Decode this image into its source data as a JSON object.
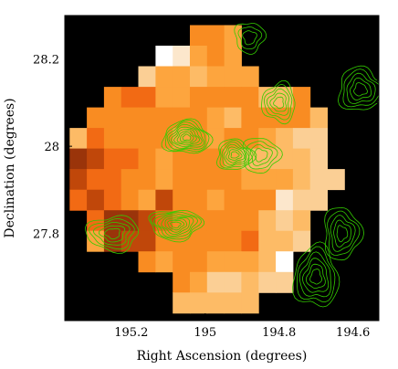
{
  "chart_data": {
    "type": "heatmap",
    "title": "",
    "xlabel": "Right Ascension (degrees)",
    "ylabel": "Declination (degrees)",
    "x_reversed": true,
    "xlim": [
      195.38,
      194.53
    ],
    "ylim": [
      27.6,
      28.3
    ],
    "xticks": [
      {
        "value": 195.2,
        "label": "195.2"
      },
      {
        "value": 195.0,
        "label": "195"
      },
      {
        "value": 194.8,
        "label": "194.8"
      },
      {
        "value": 194.6,
        "label": "194.6"
      }
    ],
    "yticks": [
      {
        "value": 28.2,
        "label": "28.2"
      },
      {
        "value": 28.0,
        "label": "28"
      },
      {
        "value": 27.8,
        "label": "27.8"
      }
    ],
    "background_color": "#000000",
    "contour_color": "#33cc00",
    "grid": false,
    "palette": {
      "0": "#fce7cc",
      "1": "#fbcf95",
      "2": "#fdbb66",
      "3": "#fda53e",
      "4": "#f98c22",
      "5": "#f26a14",
      "6": "#c0470a",
      "7": "#9a340a",
      "w": "#ffffff"
    },
    "pixel_grid": {
      "ra_start": 195.367,
      "dec_start": 28.278,
      "ra_step": 0.0465,
      "dec_step": 0.0472,
      "rows": [
        "..........................................",
        ".......443.......",
        ".....w0343.......",
        "....1332333......",
        "..455334444224...",
        ".44444443244442..",
        "254444343443211..",
        "765543444322221..",
        "6554434444333211.",
        "565436443444011..",
        ".5776544444212...",
        ".3766444445221...",
        "....43443332w....",
        "......4311211....",
        "......22222......"
      ]
    },
    "contours": [
      {
        "center": [
          195.05,
          28.02
        ],
        "levels": 9,
        "rx": 0.065,
        "ry": 0.038
      },
      {
        "center": [
          194.92,
          27.98
        ],
        "levels": 7,
        "rx": 0.05,
        "ry": 0.035
      },
      {
        "center": [
          194.85,
          27.98
        ],
        "levels": 4,
        "rx": 0.05,
        "ry": 0.04
      },
      {
        "center": [
          195.08,
          27.82
        ],
        "levels": 8,
        "rx": 0.07,
        "ry": 0.035
      },
      {
        "center": [
          195.25,
          27.8
        ],
        "levels": 5,
        "rx": 0.07,
        "ry": 0.04
      },
      {
        "center": [
          194.8,
          28.1
        ],
        "levels": 5,
        "rx": 0.045,
        "ry": 0.045
      },
      {
        "center": [
          194.7,
          27.7
        ],
        "levels": 6,
        "rx": 0.06,
        "ry": 0.07
      },
      {
        "center": [
          194.58,
          28.13
        ],
        "levels": 5,
        "rx": 0.06,
        "ry": 0.05
      },
      {
        "center": [
          194.63,
          27.8
        ],
        "levels": 5,
        "rx": 0.05,
        "ry": 0.06
      },
      {
        "center": [
          194.88,
          28.25
        ],
        "levels": 3,
        "rx": 0.04,
        "ry": 0.035
      }
    ]
  }
}
